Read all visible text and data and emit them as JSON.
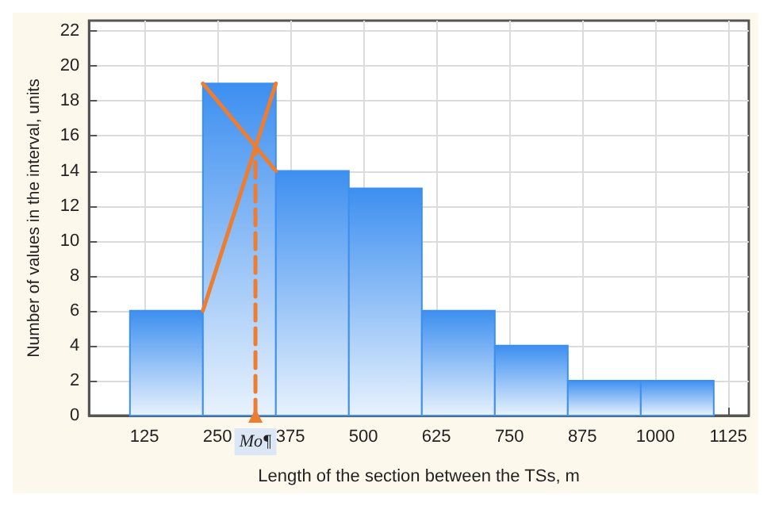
{
  "chart_data": {
    "type": "histogram",
    "xlabel": "Length of the section between the TSs, m",
    "ylabel": "Number of values in the interval, units",
    "bins": [
      100,
      225,
      350,
      475,
      600,
      725,
      850,
      975,
      1100
    ],
    "values": [
      6,
      19,
      14,
      13,
      6,
      4,
      2,
      2
    ],
    "color": "#3d8ff0",
    "xlim": [
      30,
      1160
    ],
    "xticks": [
      125,
      250,
      375,
      500,
      625,
      750,
      875,
      1000,
      1125
    ],
    "ylim": [
      0,
      22.6
    ],
    "yticks": [
      0,
      2,
      4,
      6,
      8,
      10,
      12,
      14,
      16,
      18,
      20,
      22
    ],
    "grid": true,
    "series": [
      {
        "type": "line",
        "color": "#ed7d31",
        "x": [
          225,
          350
        ],
        "values": [
          19,
          14
        ],
        "marker": "none",
        "line_style": "solid"
      },
      {
        "type": "line",
        "color": "#ed7d31",
        "x": [
          225,
          350
        ],
        "values": [
          6,
          19
        ],
        "marker": "none",
        "line_style": "solid"
      },
      {
        "type": "line",
        "color": "#ed7d31",
        "x": [
          315,
          315
        ],
        "values": [
          0,
          15.4
        ],
        "marker": "triangle",
        "line_style": "dashed"
      }
    ],
    "annotations": [
      {
        "text": "Mo¶",
        "x": 315,
        "y": 0
      }
    ]
  }
}
